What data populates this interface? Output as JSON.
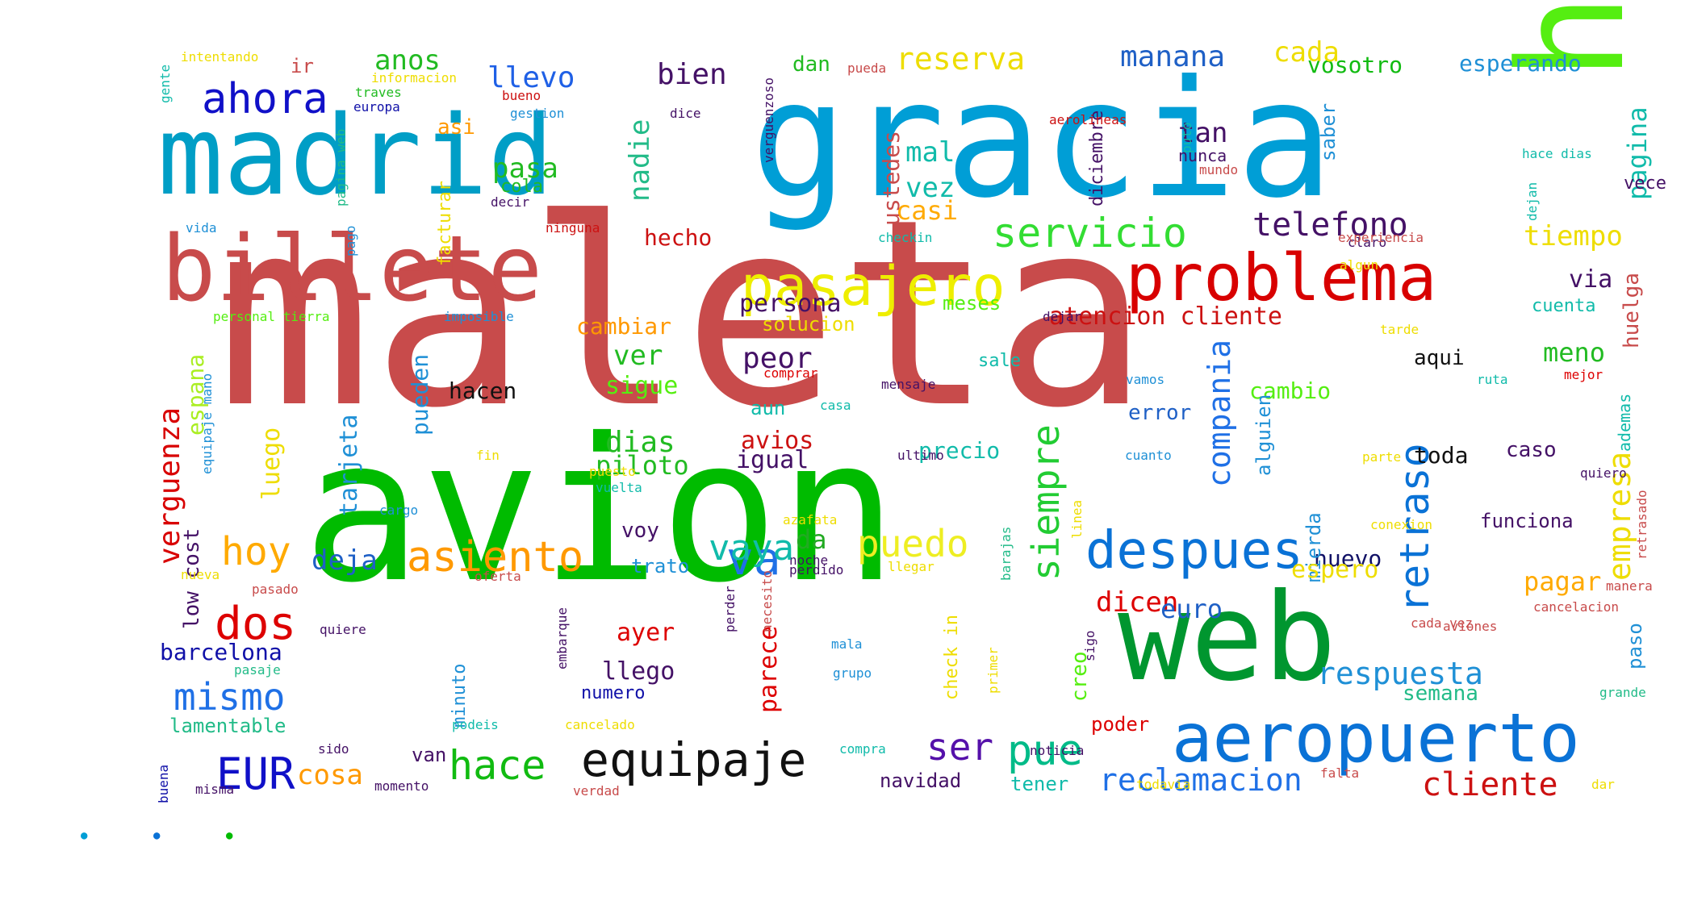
{
  "words": [
    {
      "text": "maleta",
      "color": "#c84b4b"
    },
    {
      "text": "avion",
      "color": "#00bb00"
    },
    {
      "text": "gracia",
      "color": "#009ed6"
    },
    {
      "text": "hora",
      "color": "#55ee11"
    },
    {
      "text": "madrid",
      "color": "#009ec6"
    },
    {
      "text": "billete",
      "color": "#c84b4b"
    },
    {
      "text": "web",
      "color": "#00962f"
    },
    {
      "text": "aeropuerto",
      "color": "#0a72d6"
    },
    {
      "text": "problema",
      "color": "#d80000"
    },
    {
      "text": "pasajero",
      "color": "#eeee00"
    },
    {
      "text": "despues",
      "color": "#0a72d6"
    },
    {
      "text": "equipaje",
      "color": "#111111"
    },
    {
      "text": "servicio",
      "color": "#33dd33"
    },
    {
      "text": "asiento",
      "color": "#ff9900"
    },
    {
      "text": "siempre",
      "color": "#22cc33"
    },
    {
      "text": "retraso",
      "color": "#0a72d6"
    },
    {
      "text": "hace",
      "color": "#11bb11"
    },
    {
      "text": "mismo",
      "color": "#1f70e6"
    },
    {
      "text": "ahora",
      "color": "#1010c8"
    },
    {
      "text": "telefono",
      "color": "#441166"
    },
    {
      "text": "pue",
      "color": "#00bb88"
    },
    {
      "text": "dos",
      "color": "#dd0000"
    },
    {
      "text": "hoy",
      "color": "#ffaa00"
    },
    {
      "text": "puedo",
      "color": "#eeee22"
    },
    {
      "text": "ser",
      "color": "#5511aa"
    },
    {
      "text": "va",
      "color": "#1f70e6"
    },
    {
      "text": "EUR",
      "color": "#1010c8"
    },
    {
      "text": "cliente",
      "color": "#cc1111"
    },
    {
      "text": "reclamacion",
      "color": "#1f70e6"
    },
    {
      "text": "respuesta",
      "color": "#1f90d6"
    },
    {
      "text": "verguenza",
      "color": "#d80000"
    },
    {
      "text": "compania",
      "color": "#1f70e6"
    },
    {
      "text": "reserva",
      "color": "#eedd00"
    },
    {
      "text": "empresa",
      "color": "#eedd00"
    },
    {
      "text": "manana",
      "color": "#1f60c6"
    },
    {
      "text": "pagina",
      "color": "#11bbaa"
    },
    {
      "text": "tiempo",
      "color": "#eedd00"
    },
    {
      "text": "llevo",
      "color": "#1f60e6"
    },
    {
      "text": "bien",
      "color": "#441166"
    },
    {
      "text": "anos",
      "color": "#22bb22"
    },
    {
      "text": "atencion cliente",
      "color": "#cc1111"
    },
    {
      "text": "dias",
      "color": "#22bb22"
    },
    {
      "text": "peor",
      "color": "#441166"
    },
    {
      "text": "deja",
      "color": "#1f60c6"
    },
    {
      "text": "cosa",
      "color": "#ff9900"
    },
    {
      "text": "dicen",
      "color": "#dd0000"
    },
    {
      "text": "pagar",
      "color": "#ffaa00"
    },
    {
      "text": "nadie",
      "color": "#22bb88"
    },
    {
      "text": "pasa",
      "color": "#22bb22"
    },
    {
      "text": "mal",
      "color": "#11bbaa"
    },
    {
      "text": "vez",
      "color": "#11bbaa"
    },
    {
      "text": "tan",
      "color": "#441166"
    },
    {
      "text": "euro",
      "color": "#1f60c6"
    },
    {
      "text": "da",
      "color": "#22aa22"
    },
    {
      "text": "casi",
      "color": "#ffaa00"
    },
    {
      "text": "vosotro",
      "color": "#11bb11"
    },
    {
      "text": "esperando",
      "color": "#1f90d6"
    },
    {
      "text": "espana",
      "color": "#aaee22"
    },
    {
      "text": "huelga",
      "color": "#c84b4b"
    },
    {
      "text": "via",
      "color": "#441166"
    },
    {
      "text": "meno",
      "color": "#22bb22"
    },
    {
      "text": "cambiar",
      "color": "#ff9900"
    },
    {
      "text": "ver",
      "color": "#22bb22"
    },
    {
      "text": "sigue",
      "color": "#55ee11"
    },
    {
      "text": "hacen",
      "color": "#111111"
    },
    {
      "text": "cambio",
      "color": "#55ee11"
    },
    {
      "text": "aqui",
      "color": "#111111"
    },
    {
      "text": "toda",
      "color": "#111111"
    },
    {
      "text": "precio",
      "color": "#11bbaa"
    },
    {
      "text": "piloto",
      "color": "#22bb22"
    },
    {
      "text": "igual",
      "color": "#441166"
    },
    {
      "text": "avios",
      "color": "#cc1111"
    },
    {
      "text": "luego",
      "color": "#eedd00"
    },
    {
      "text": "tarjeta",
      "color": "#1f90d6"
    },
    {
      "text": "pueden",
      "color": "#1f90d6"
    },
    {
      "text": "persona",
      "color": "#441166"
    },
    {
      "text": "meses",
      "color": "#55ee11"
    },
    {
      "text": "nuevo",
      "color": "#111166"
    },
    {
      "text": "ustedes",
      "color": "#c84b4b"
    },
    {
      "text": "hecho",
      "color": "#cc1111"
    },
    {
      "text": "parece",
      "color": "#dd0000"
    },
    {
      "text": "llego",
      "color": "#441166"
    },
    {
      "text": "ayer",
      "color": "#dd0000"
    },
    {
      "text": "voy",
      "color": "#441166"
    },
    {
      "text": "trato",
      "color": "#1f90d6"
    },
    {
      "text": "barcelona",
      "color": "#1010a8"
    },
    {
      "text": "lamentable",
      "color": "#22bb88"
    },
    {
      "text": "low cost",
      "color": "#441166"
    },
    {
      "text": "error",
      "color": "#1f60c6"
    },
    {
      "text": "alguien",
      "color": "#1f90d6"
    },
    {
      "text": "mierda",
      "color": "#1f90d6"
    },
    {
      "text": "caso",
      "color": "#441166"
    },
    {
      "text": "funciona",
      "color": "#441166"
    },
    {
      "text": "paso",
      "color": "#1f90d6"
    },
    {
      "text": "semana",
      "color": "#22bb88"
    },
    {
      "text": "navidad",
      "color": "#441166"
    },
    {
      "text": "tener",
      "color": "#11bbaa"
    },
    {
      "text": "poder",
      "color": "#dd0000"
    },
    {
      "text": "creo",
      "color": "#55ee11"
    },
    {
      "text": "van",
      "color": "#441166"
    },
    {
      "text": "numero",
      "color": "#1010a8"
    },
    {
      "text": "minuto",
      "color": "#1f90d6"
    },
    {
      "text": "aun",
      "color": "#11bbaa"
    },
    {
      "text": "dan",
      "color": "#22bb22"
    },
    {
      "text": "saber",
      "color": "#1f90d6"
    },
    {
      "text": "solucion",
      "color": "#eedd00"
    },
    {
      "text": "sale",
      "color": "#11bbaa"
    },
    {
      "text": "cuenta",
      "color": "#11bbaa"
    },
    {
      "text": "ademas",
      "color": "#11bbaa"
    },
    {
      "text": "diciembre",
      "color": "#441166"
    },
    {
      "text": "nunca",
      "color": "#441166"
    },
    {
      "text": "asi",
      "color": "#ff9900"
    },
    {
      "text": "ir",
      "color": "#c84b4b"
    },
    {
      "text": "vece",
      "color": "#441166"
    },
    {
      "text": "facturar",
      "color": "#eedd00"
    },
    {
      "text": "cola",
      "color": "#22bb22"
    },
    {
      "text": "check in",
      "color": "#eedd00"
    },
    {
      "text": "puto",
      "color": "#11bbaa"
    },
    {
      "text": "mundo",
      "color": "#c84b4b"
    },
    {
      "text": "hace dias",
      "color": "#11bbaa"
    },
    {
      "text": "dejan",
      "color": "#11bbaa"
    },
    {
      "text": "dejar",
      "color": "#441166"
    },
    {
      "text": "tarde",
      "color": "#eedd00"
    },
    {
      "text": "claro",
      "color": "#441166"
    },
    {
      "text": "algun",
      "color": "#eedd00"
    },
    {
      "text": "mejor",
      "color": "#dd0000"
    },
    {
      "text": "parte",
      "color": "#eedd00"
    },
    {
      "text": "quiero",
      "color": "#441166"
    },
    {
      "text": "retrasado",
      "color": "#c84b4b"
    },
    {
      "text": "grande",
      "color": "#22bb88"
    },
    {
      "text": "cancelacion",
      "color": "#c84b4b"
    },
    {
      "text": "aviones",
      "color": "#c84b4b"
    },
    {
      "text": "cada vez",
      "color": "#c84b4b"
    },
    {
      "text": "intentando",
      "color": "#eedd00"
    },
    {
      "text": "informacion",
      "color": "#eedd00"
    },
    {
      "text": "gente",
      "color": "#11bbaa"
    },
    {
      "text": "traves",
      "color": "#22bb22"
    },
    {
      "text": "europa",
      "color": "#1010a8"
    },
    {
      "text": "bueno",
      "color": "#cc1111"
    },
    {
      "text": "gestion",
      "color": "#1f90d6"
    },
    {
      "text": "dice",
      "color": "#441166"
    },
    {
      "text": "aerolineas",
      "color": "#cc1111"
    },
    {
      "text": "verguenzoso",
      "color": "#441166"
    },
    {
      "text": "pueda",
      "color": "#c84b4b"
    },
    {
      "text": "pagina web",
      "color": "#22bb88"
    },
    {
      "text": "decir",
      "color": "#441166"
    },
    {
      "text": "ninguna",
      "color": "#cc1111"
    },
    {
      "text": "vida",
      "color": "#1f90d6"
    },
    {
      "text": "pago",
      "color": "#1f90d6"
    },
    {
      "text": "personal tierra",
      "color": "#55ee11"
    },
    {
      "text": "imposible",
      "color": "#1f90d6"
    },
    {
      "text": "checkin",
      "color": "#11bbaa"
    },
    {
      "text": "experiencia",
      "color": "#c84b4b"
    },
    {
      "text": "comprar",
      "color": "#dd0000"
    },
    {
      "text": "mensaje",
      "color": "#441166"
    },
    {
      "text": "vamos",
      "color": "#1f90d6"
    },
    {
      "text": "ruta",
      "color": "#11bbaa"
    },
    {
      "text": "casa",
      "color": "#11bbaa"
    },
    {
      "text": "fin",
      "color": "#eedd00"
    },
    {
      "text": "puesto",
      "color": "#eedd00"
    },
    {
      "text": "ultimo",
      "color": "#441166"
    },
    {
      "text": "cuanto",
      "color": "#1f90d6"
    },
    {
      "text": "linea",
      "color": "#eedd00"
    },
    {
      "text": "vuelta",
      "color": "#11bbaa"
    },
    {
      "text": "equipaje mano",
      "color": "#1f90d6"
    },
    {
      "text": "cargo",
      "color": "#1f90d6"
    },
    {
      "text": "barajas",
      "color": "#22bb88"
    },
    {
      "text": "azafata",
      "color": "#eedd00"
    },
    {
      "text": "conexion",
      "color": "#eedd00"
    },
    {
      "text": "noche",
      "color": "#441166"
    },
    {
      "text": "perdido",
      "color": "#441166"
    },
    {
      "text": "llegar",
      "color": "#eedd00"
    },
    {
      "text": "nueva",
      "color": "#eedd00"
    },
    {
      "text": "oferta",
      "color": "#c84b4b"
    },
    {
      "text": "pasado",
      "color": "#c84b4b"
    },
    {
      "text": "quiere",
      "color": "#441166"
    },
    {
      "text": "perder",
      "color": "#441166"
    },
    {
      "text": "embarque",
      "color": "#441166"
    },
    {
      "text": "necesito",
      "color": "#c84b4b"
    },
    {
      "text": "mala",
      "color": "#1f90d6"
    },
    {
      "text": "sigo",
      "color": "#441166"
    },
    {
      "text": "pasaje",
      "color": "#22bb88"
    },
    {
      "text": "grupo",
      "color": "#1f90d6"
    },
    {
      "text": "primer",
      "color": "#eedd00"
    },
    {
      "text": "podeis",
      "color": "#11bbaa"
    },
    {
      "text": "cancelado",
      "color": "#eedd00"
    },
    {
      "text": "sido",
      "color": "#441166"
    },
    {
      "text": "compra",
      "color": "#11bbaa"
    },
    {
      "text": "noticia",
      "color": "#441166"
    },
    {
      "text": "buena",
      "color": "#1010a8"
    },
    {
      "text": "misma",
      "color": "#441166"
    },
    {
      "text": "momento",
      "color": "#441166"
    },
    {
      "text": "verdad",
      "color": "#c84b4b"
    },
    {
      "text": "todavia",
      "color": "#eedd00"
    },
    {
      "text": "falta",
      "color": "#c84b4b"
    },
    {
      "text": "dar",
      "color": "#eedd00"
    },
    {
      "text": "manera",
      "color": "#c84b4b"
    },
    {
      "text": "cada",
      "color": "#eedd00"
    },
    {
      "text": "espero",
      "color": "#eedd00"
    },
    {
      "text": "vaya",
      "color": "#11bbaa"
    },
    {
      "text": "●",
      "color": "#009ed6"
    },
    {
      "text": "●",
      "color": "#0a72d6"
    },
    {
      "text": "●",
      "color": "#00bb00"
    }
  ]
}
